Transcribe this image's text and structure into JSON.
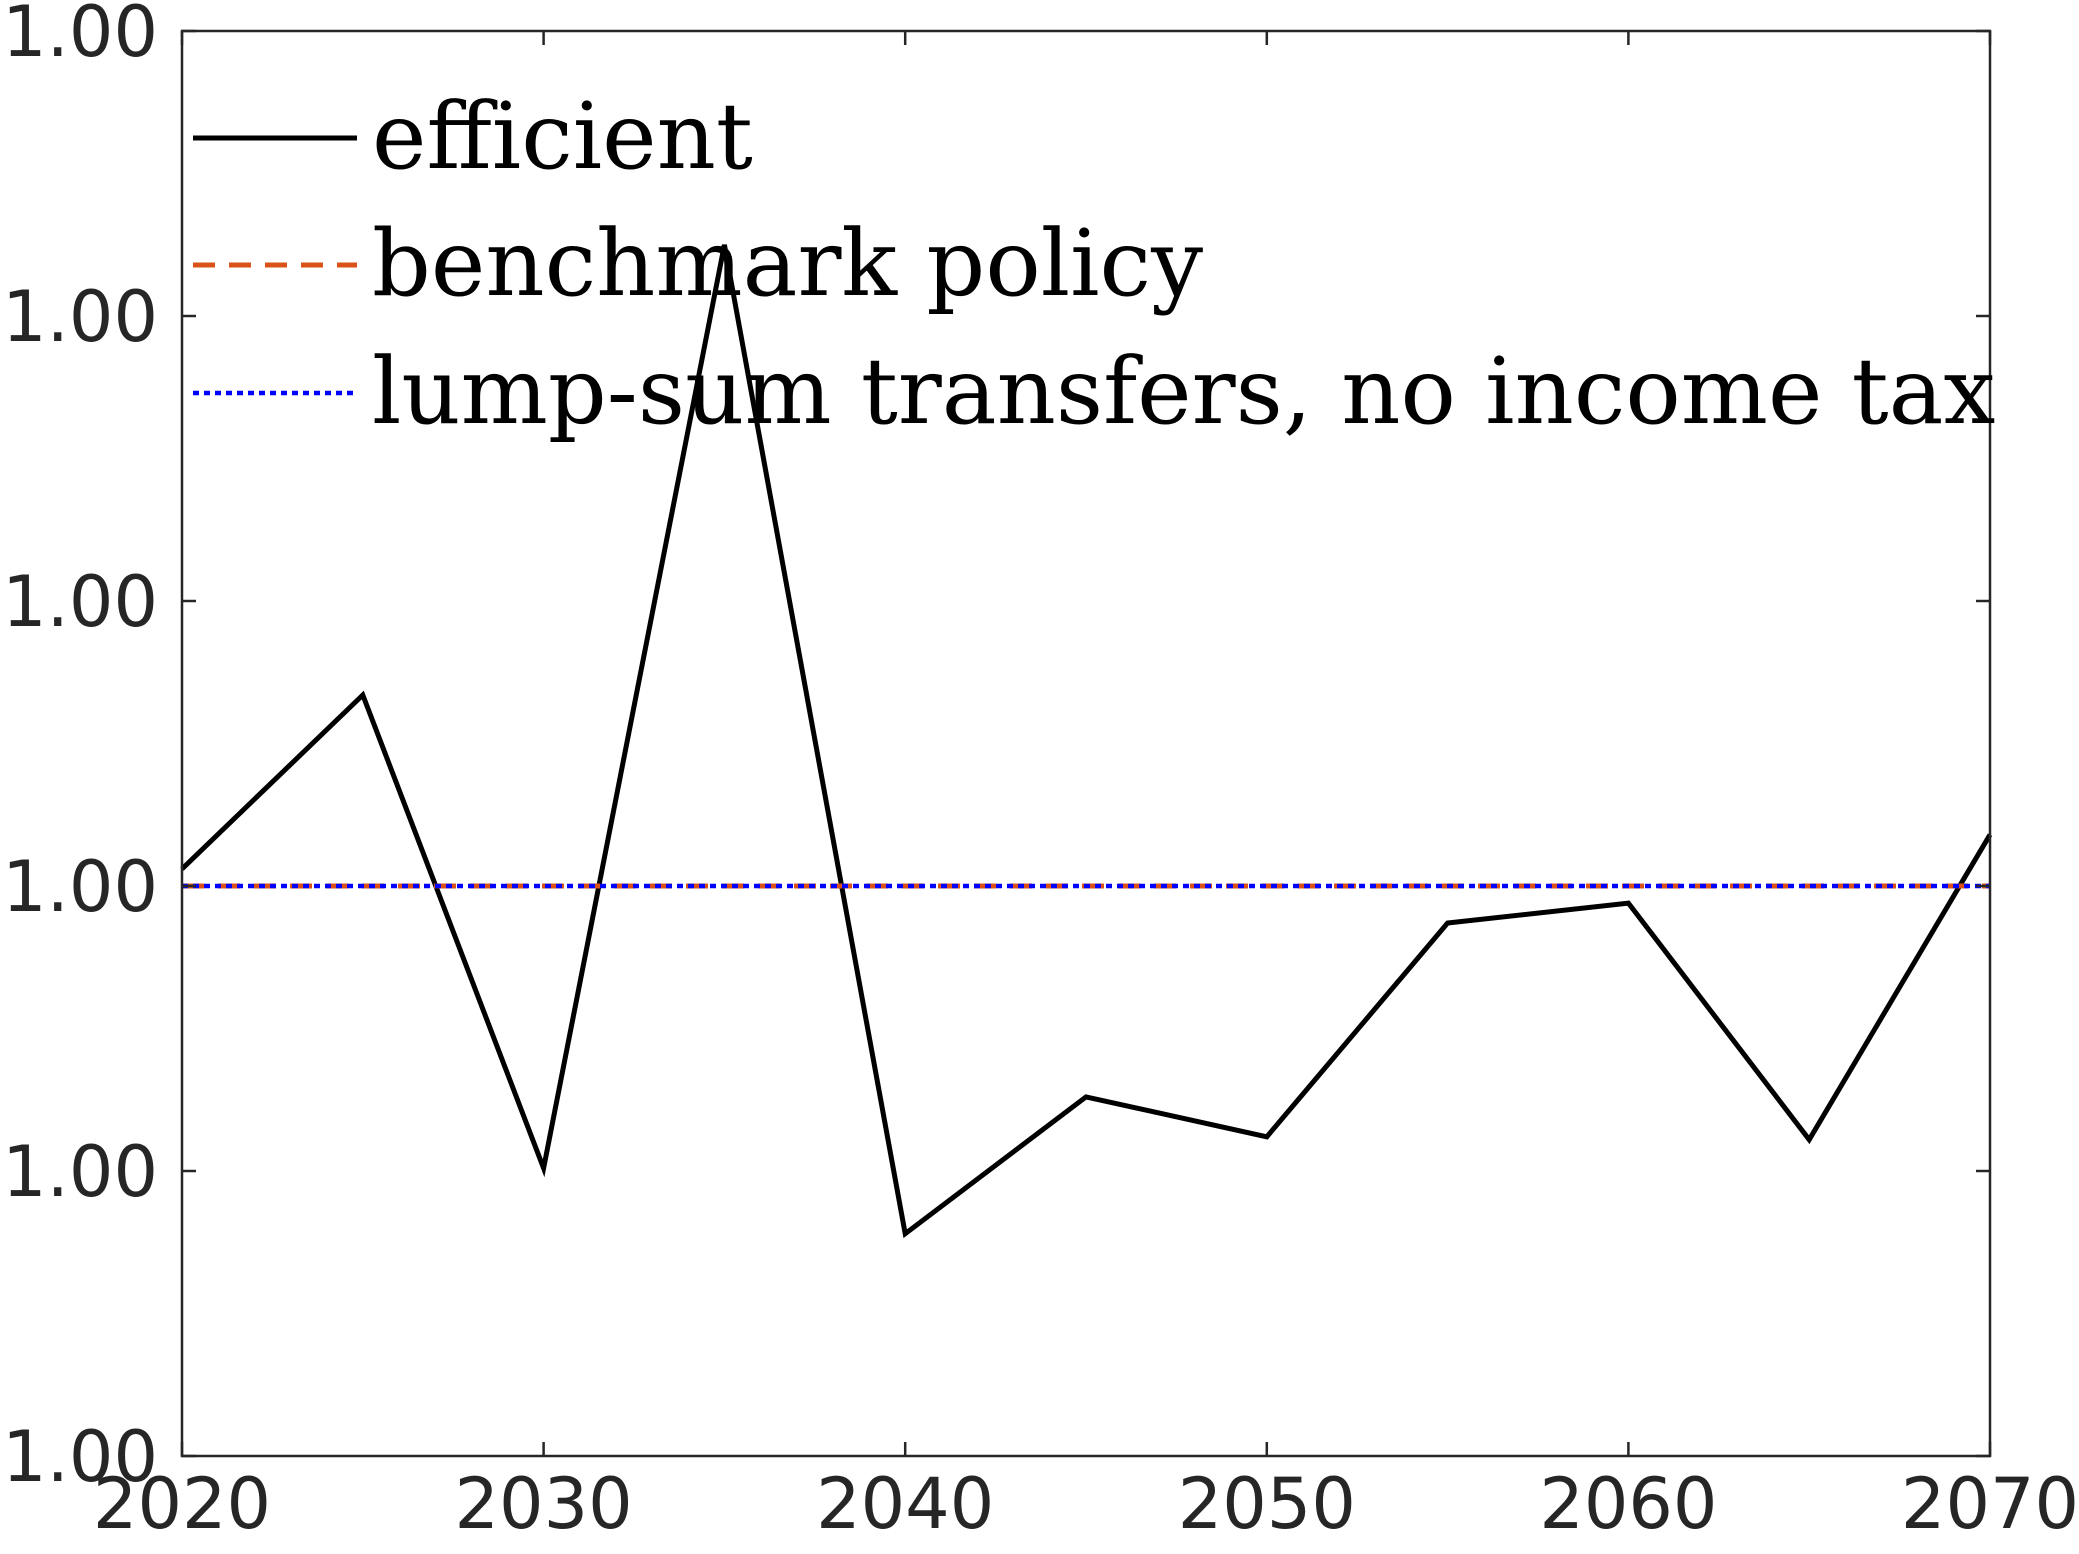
{
  "chart_data": {
    "type": "line",
    "title": "",
    "xlabel": "",
    "ylabel": "",
    "x": [
      2020,
      2025,
      2030,
      2035,
      2040,
      2045,
      2050,
      2055,
      2060,
      2065,
      2070
    ],
    "xlim": [
      2020,
      2070
    ],
    "ylim": [
      0,
      5
    ],
    "note": "y tick labels all print 1.00 (values rounded to two decimals); y values below are in relative units of the axis",
    "x_ticks": [
      2020,
      2030,
      2040,
      2050,
      2060,
      2070
    ],
    "x_tick_labels": [
      "2020",
      "2030",
      "2040",
      "2050",
      "2060",
      "2070"
    ],
    "y_ticks": [
      0,
      1,
      2,
      3,
      4,
      5
    ],
    "y_tick_labels": [
      "1.00",
      "1.00",
      "1.00",
      "1.00",
      "1.00",
      "1.00"
    ],
    "grid": false,
    "legend_position": "top-left",
    "series": [
      {
        "name": "efficient",
        "color": "#000000",
        "style": "solid",
        "values": [
          2.06,
          2.67,
          1.01,
          4.25,
          0.78,
          1.26,
          1.12,
          1.87,
          1.94,
          1.11,
          2.18
        ]
      },
      {
        "name": "benchmark policy",
        "color": "#D95319",
        "style": "dashed",
        "values": [
          2.0,
          2.0,
          2.0,
          2.0,
          2.0,
          2.0,
          2.0,
          2.0,
          2.0,
          2.0,
          2.0
        ]
      },
      {
        "name": "lump-sum transfers, no income tax",
        "color": "#0000FF",
        "style": "dotted",
        "values": [
          2.0,
          2.0,
          2.0,
          2.0,
          2.0,
          2.0,
          2.0,
          2.0,
          2.0,
          2.0,
          2.0
        ]
      }
    ]
  }
}
